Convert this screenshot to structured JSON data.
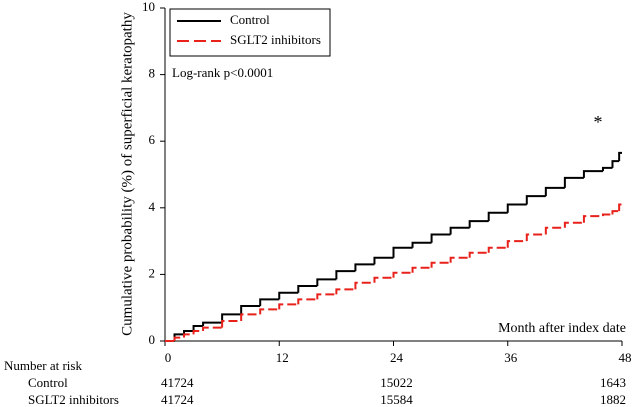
{
  "chart_data": {
    "type": "step",
    "y_label": "Cumulative probability (%) of superficial keratopathy",
    "x_label": "Month after index date",
    "annotations": [
      "Log-rank p<0.0001",
      "*"
    ],
    "xlim": [
      0,
      48
    ],
    "xticks": [
      0,
      12,
      24,
      36,
      48
    ],
    "ylim": [
      0,
      10
    ],
    "yticks": [
      0,
      2,
      4,
      6,
      8,
      10
    ],
    "x": [
      0,
      1,
      2,
      3,
      4,
      6,
      8,
      10,
      12,
      14,
      16,
      18,
      20,
      22,
      24,
      26,
      28,
      30,
      32,
      34,
      36,
      38,
      40,
      42,
      44,
      46,
      47,
      47.7,
      48
    ],
    "series": [
      {
        "name": "Control",
        "color": "#000000",
        "dash": false,
        "values": [
          0,
          0.2,
          0.3,
          0.45,
          0.55,
          0.8,
          1.05,
          1.25,
          1.45,
          1.65,
          1.85,
          2.1,
          2.3,
          2.5,
          2.8,
          2.95,
          3.2,
          3.4,
          3.6,
          3.85,
          4.1,
          4.35,
          4.6,
          4.9,
          5.1,
          5.2,
          5.4,
          5.65,
          5.65
        ]
      },
      {
        "name": "SGLT2 inhibitors",
        "color": "#e8211b",
        "dash": true,
        "values": [
          0,
          0.1,
          0.2,
          0.3,
          0.4,
          0.6,
          0.8,
          0.95,
          1.1,
          1.25,
          1.4,
          1.55,
          1.75,
          1.9,
          2.05,
          2.2,
          2.35,
          2.5,
          2.65,
          2.8,
          3.0,
          3.2,
          3.4,
          3.55,
          3.75,
          3.8,
          3.9,
          4.1,
          4.1
        ]
      }
    ],
    "risk_table": {
      "title": "Number at risk",
      "times": [
        0,
        24,
        48
      ],
      "rows": [
        {
          "name": "Control",
          "values": [
            41724,
            15022,
            1643
          ]
        },
        {
          "name": "SGLT2 inhibitors",
          "values": [
            41724,
            15584,
            1882
          ]
        }
      ]
    }
  }
}
